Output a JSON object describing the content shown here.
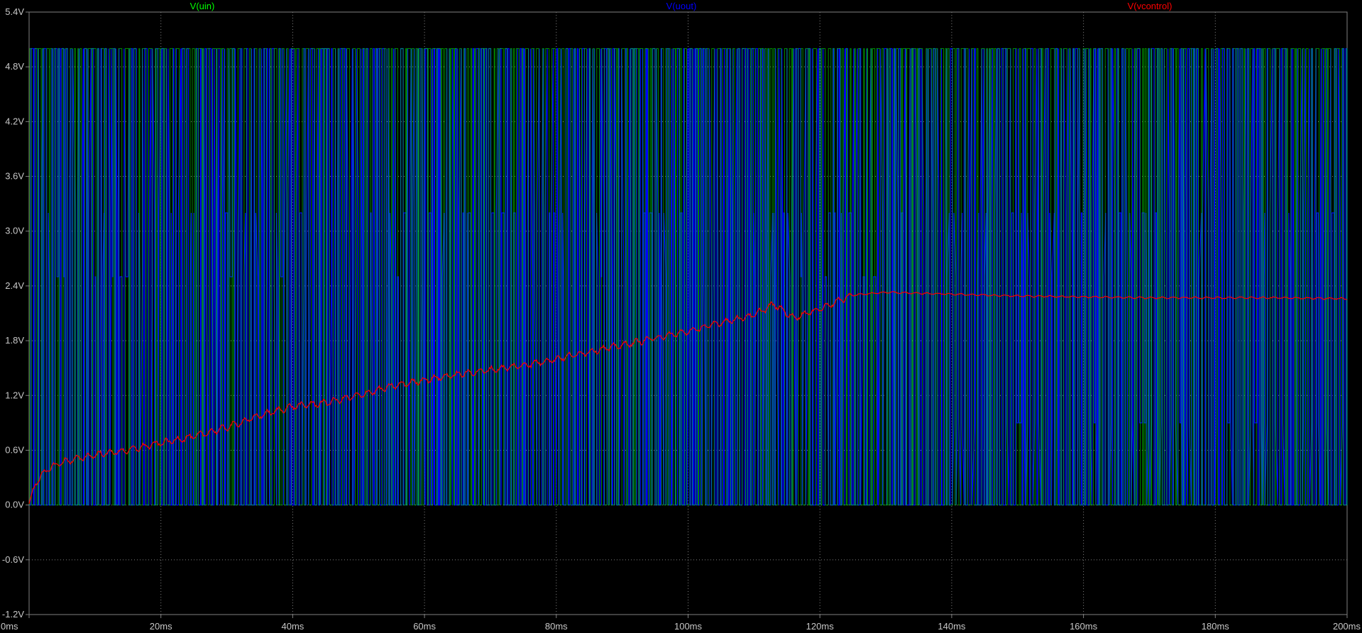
{
  "chart_data": {
    "type": "line",
    "title": "",
    "xlabel": "",
    "ylabel": "",
    "xlim": [
      0,
      200
    ],
    "ylim": [
      -1.2,
      5.4
    ],
    "grid": true,
    "legend_position": "top",
    "background_color": "#000000",
    "grid_color": "#808080",
    "x_ticks": [
      "0ms",
      "20ms",
      "40ms",
      "60ms",
      "80ms",
      "100ms",
      "120ms",
      "140ms",
      "160ms",
      "180ms",
      "200ms"
    ],
    "y_ticks": [
      "5.4V",
      "4.8V",
      "4.2V",
      "3.6V",
      "3.0V",
      "2.4V",
      "1.8V",
      "1.2V",
      "0.6V",
      "0.0V",
      "-0.6V",
      "-1.2V"
    ],
    "series": [
      {
        "name": "V(uin)",
        "color": "#00ff00",
        "style": "pwm",
        "low": 0.0,
        "high": 5.0,
        "approx_transitions": 620
      },
      {
        "name": "V(uout)",
        "color": "#0000ff",
        "style": "pwm-multilevel",
        "levels": [
          0.0,
          2.5,
          3.2,
          5.0
        ],
        "approx_transitions": 900
      },
      {
        "name": "V(vcontrol)",
        "color": "#ff0000",
        "style": "line",
        "x": [
          0,
          1,
          3,
          5,
          10,
          15,
          20,
          25,
          30,
          35,
          40,
          45,
          50,
          55,
          60,
          65,
          70,
          75,
          80,
          85,
          90,
          95,
          100,
          105,
          110,
          113,
          116,
          120,
          125,
          130,
          140,
          150,
          160,
          170,
          180,
          190,
          200
        ],
        "y": [
          0.0,
          0.25,
          0.4,
          0.47,
          0.55,
          0.6,
          0.68,
          0.75,
          0.85,
          0.98,
          1.08,
          1.12,
          1.2,
          1.3,
          1.37,
          1.43,
          1.48,
          1.53,
          1.6,
          1.68,
          1.75,
          1.83,
          1.9,
          2.0,
          2.08,
          2.2,
          2.05,
          2.15,
          2.3,
          2.33,
          2.31,
          2.29,
          2.28,
          2.27,
          2.27,
          2.27,
          2.26
        ]
      }
    ]
  }
}
